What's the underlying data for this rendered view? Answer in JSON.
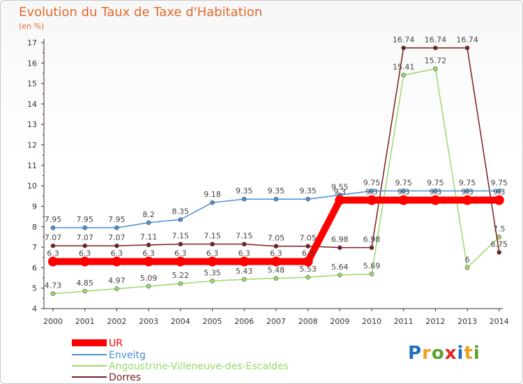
{
  "colors": {
    "title": "#e06a2b",
    "axis": "#333333",
    "grid_tick": "#c00000"
  },
  "chart_data": {
    "type": "line",
    "title": "Evolution du Taux de Taxe d'Habitation",
    "subtitle": "(en %)",
    "x": [
      "2000",
      "2001",
      "2002",
      "2003",
      "2004",
      "2005",
      "2006",
      "2007",
      "2008",
      "2009",
      "2010",
      "2011",
      "2012",
      "2013",
      "2014"
    ],
    "ylim": [
      4,
      17
    ],
    "yticks": [
      4,
      5,
      6,
      7,
      8,
      9,
      10,
      11,
      12,
      13,
      14,
      15,
      16,
      17
    ],
    "grid": false,
    "legend_position": "bottom-left",
    "series": [
      {
        "name": "UR",
        "color": "#ff0000",
        "values": [
          6.3,
          6.3,
          6.3,
          6.3,
          6.3,
          6.3,
          6.3,
          6.3,
          6.3,
          9.3,
          9.3,
          9.3,
          9.3,
          9.3,
          9.3
        ],
        "labels": [
          "6.3",
          "6.3",
          "6.3",
          "6.3",
          "6.3",
          "6.3",
          "6.3",
          "6.3",
          "6.3",
          "9.3",
          "9.3",
          "9.3",
          "9.3",
          "9.3",
          "9.3"
        ]
      },
      {
        "name": "Enveitg",
        "color": "#4a8fd0",
        "values": [
          7.95,
          7.95,
          7.95,
          8.2,
          8.35,
          9.18,
          9.35,
          9.35,
          9.35,
          9.55,
          9.75,
          9.75,
          9.75,
          9.75,
          9.75
        ],
        "labels": [
          "7.95",
          "7.95",
          "7.95",
          "8.2",
          "8.35",
          "9.18",
          "9.35",
          "9.35",
          "9.35",
          "9.55",
          "9.75",
          "9.75",
          "9.75",
          "9.75",
          "9.75"
        ]
      },
      {
        "name": "Angoustrine-Villeneuve-des-Escaldes",
        "color": "#99d96b",
        "values": [
          4.73,
          4.85,
          4.97,
          5.09,
          5.22,
          5.35,
          5.43,
          5.48,
          5.53,
          5.64,
          5.69,
          15.41,
          15.72,
          6,
          7.5
        ],
        "labels": [
          "4.73",
          "4.85",
          "4.97",
          "5.09",
          "5.22",
          "5.35",
          "5.43",
          "5.48",
          "5.53",
          "5.64",
          "5.69",
          "15.41",
          "15.72",
          "6",
          "7.5"
        ]
      },
      {
        "name": "Dorres",
        "color": "#7a1d1d",
        "values": [
          7.07,
          7.07,
          7.07,
          7.11,
          7.15,
          7.15,
          7.15,
          7.05,
          7.05,
          6.98,
          6.98,
          16.74,
          16.74,
          16.74,
          6.75
        ],
        "labels": [
          "7.07",
          "7.07",
          "7.07",
          "7.11",
          "7.15",
          "7.15",
          "7.15",
          "7.05",
          "7.05",
          "6.98",
          "6.98",
          "16.74",
          "16.74",
          "16.74",
          "6.75"
        ]
      }
    ]
  },
  "legend": [
    "UR",
    "Enveitg",
    "Angoustrine-Villeneuve-des-Escaldes",
    "Dorres"
  ],
  "logo": {
    "letters": [
      "P",
      "r",
      "o",
      "x",
      "i",
      "t",
      "i"
    ],
    "colors": [
      "#1f6fc0",
      "#f0a020",
      "#5aa02c",
      "#e8231f",
      "#1f6fc0",
      "#f0a020",
      "#5aa02c"
    ]
  }
}
